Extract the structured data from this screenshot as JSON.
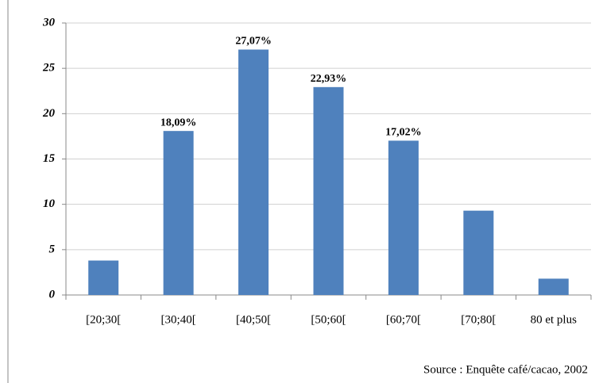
{
  "chart_data": {
    "type": "bar",
    "categories": [
      "[20;30[",
      "[30;40[",
      "[40;50[",
      "[50;60[",
      "[60;70[",
      "[70;80[",
      "80 et plus"
    ],
    "values": [
      3.8,
      18.09,
      27.07,
      22.93,
      17.02,
      9.3,
      1.8
    ],
    "value_labels": [
      null,
      "18,09%",
      "27,07%",
      "22,93%",
      "17,02%",
      null,
      null
    ],
    "color": "#4f81bd",
    "ylim": [
      0,
      30
    ],
    "yticks": [
      0,
      5,
      10,
      15,
      20,
      25,
      30
    ],
    "grid": true,
    "source": "Source : Enquête café/cacao, 2002"
  }
}
